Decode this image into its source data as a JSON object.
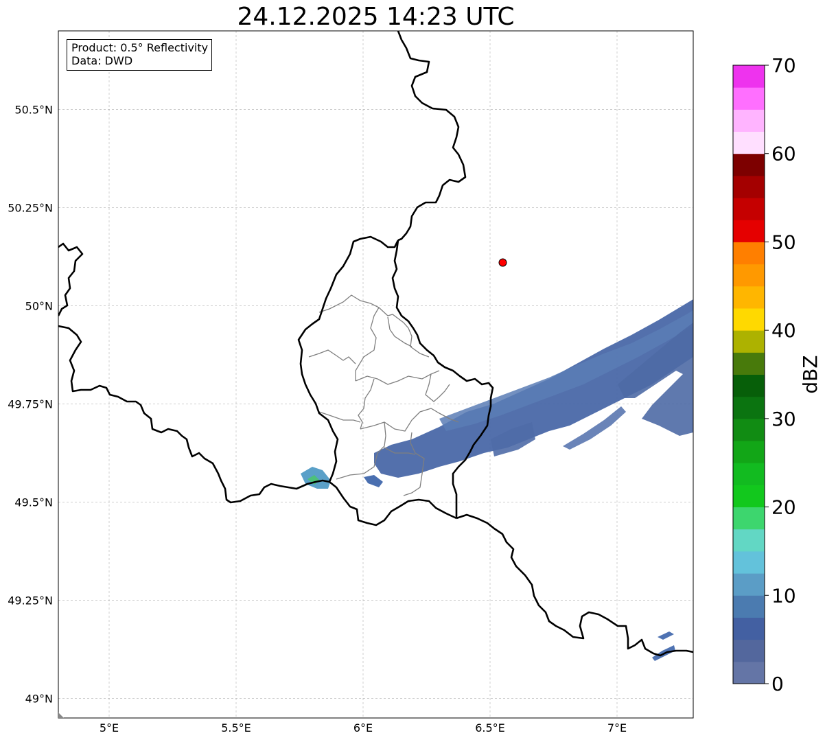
{
  "title": "24.12.2025 14:23 UTC",
  "info": {
    "product": "Product: 0.5° Reflectivity",
    "data": "Data: DWD"
  },
  "map": {
    "lon_range": [
      4.8,
      7.3
    ],
    "lat_range": [
      48.95,
      50.7
    ],
    "lon_ticks": [
      {
        "value": 5.0,
        "label": "5°E"
      },
      {
        "value": 5.5,
        "label": "5.5°E"
      },
      {
        "value": 6.0,
        "label": "6°E"
      },
      {
        "value": 6.5,
        "label": "6.5°E"
      },
      {
        "value": 7.0,
        "label": "7°E"
      }
    ],
    "lat_ticks": [
      {
        "value": 49.0,
        "label": "49°N"
      },
      {
        "value": 49.25,
        "label": "49.25°N"
      },
      {
        "value": 49.5,
        "label": "49.5°N"
      },
      {
        "value": 49.75,
        "label": "49.75°N"
      },
      {
        "value": 50.0,
        "label": "50°N"
      },
      {
        "value": 50.25,
        "label": "50.25°N"
      },
      {
        "value": 50.5,
        "label": "50.5°N"
      }
    ],
    "radar_site": {
      "lon": 6.55,
      "lat": 50.11,
      "color": "#ff0000"
    }
  },
  "colorbar": {
    "label": "dBZ",
    "min": 0,
    "max": 70,
    "ticks": [
      0,
      10,
      20,
      30,
      40,
      50,
      60,
      70
    ],
    "colors": [
      "#6475a6",
      "#53679d",
      "#4360a2",
      "#4b7bb0",
      "#5b9dc6",
      "#63c2db",
      "#62d7c4",
      "#3dd66e",
      "#12c81d",
      "#12bb20",
      "#12a617",
      "#118c13",
      "#0b7410",
      "#075f09",
      "#487a0b",
      "#adb200",
      "#ffd900",
      "#ffb600",
      "#ff9900",
      "#ff7f00",
      "#e50000",
      "#c50000",
      "#a40000",
      "#7d0000",
      "#ffdfff",
      "#ffb4ff",
      "#ff6fff",
      "#ee33ee"
    ]
  }
}
